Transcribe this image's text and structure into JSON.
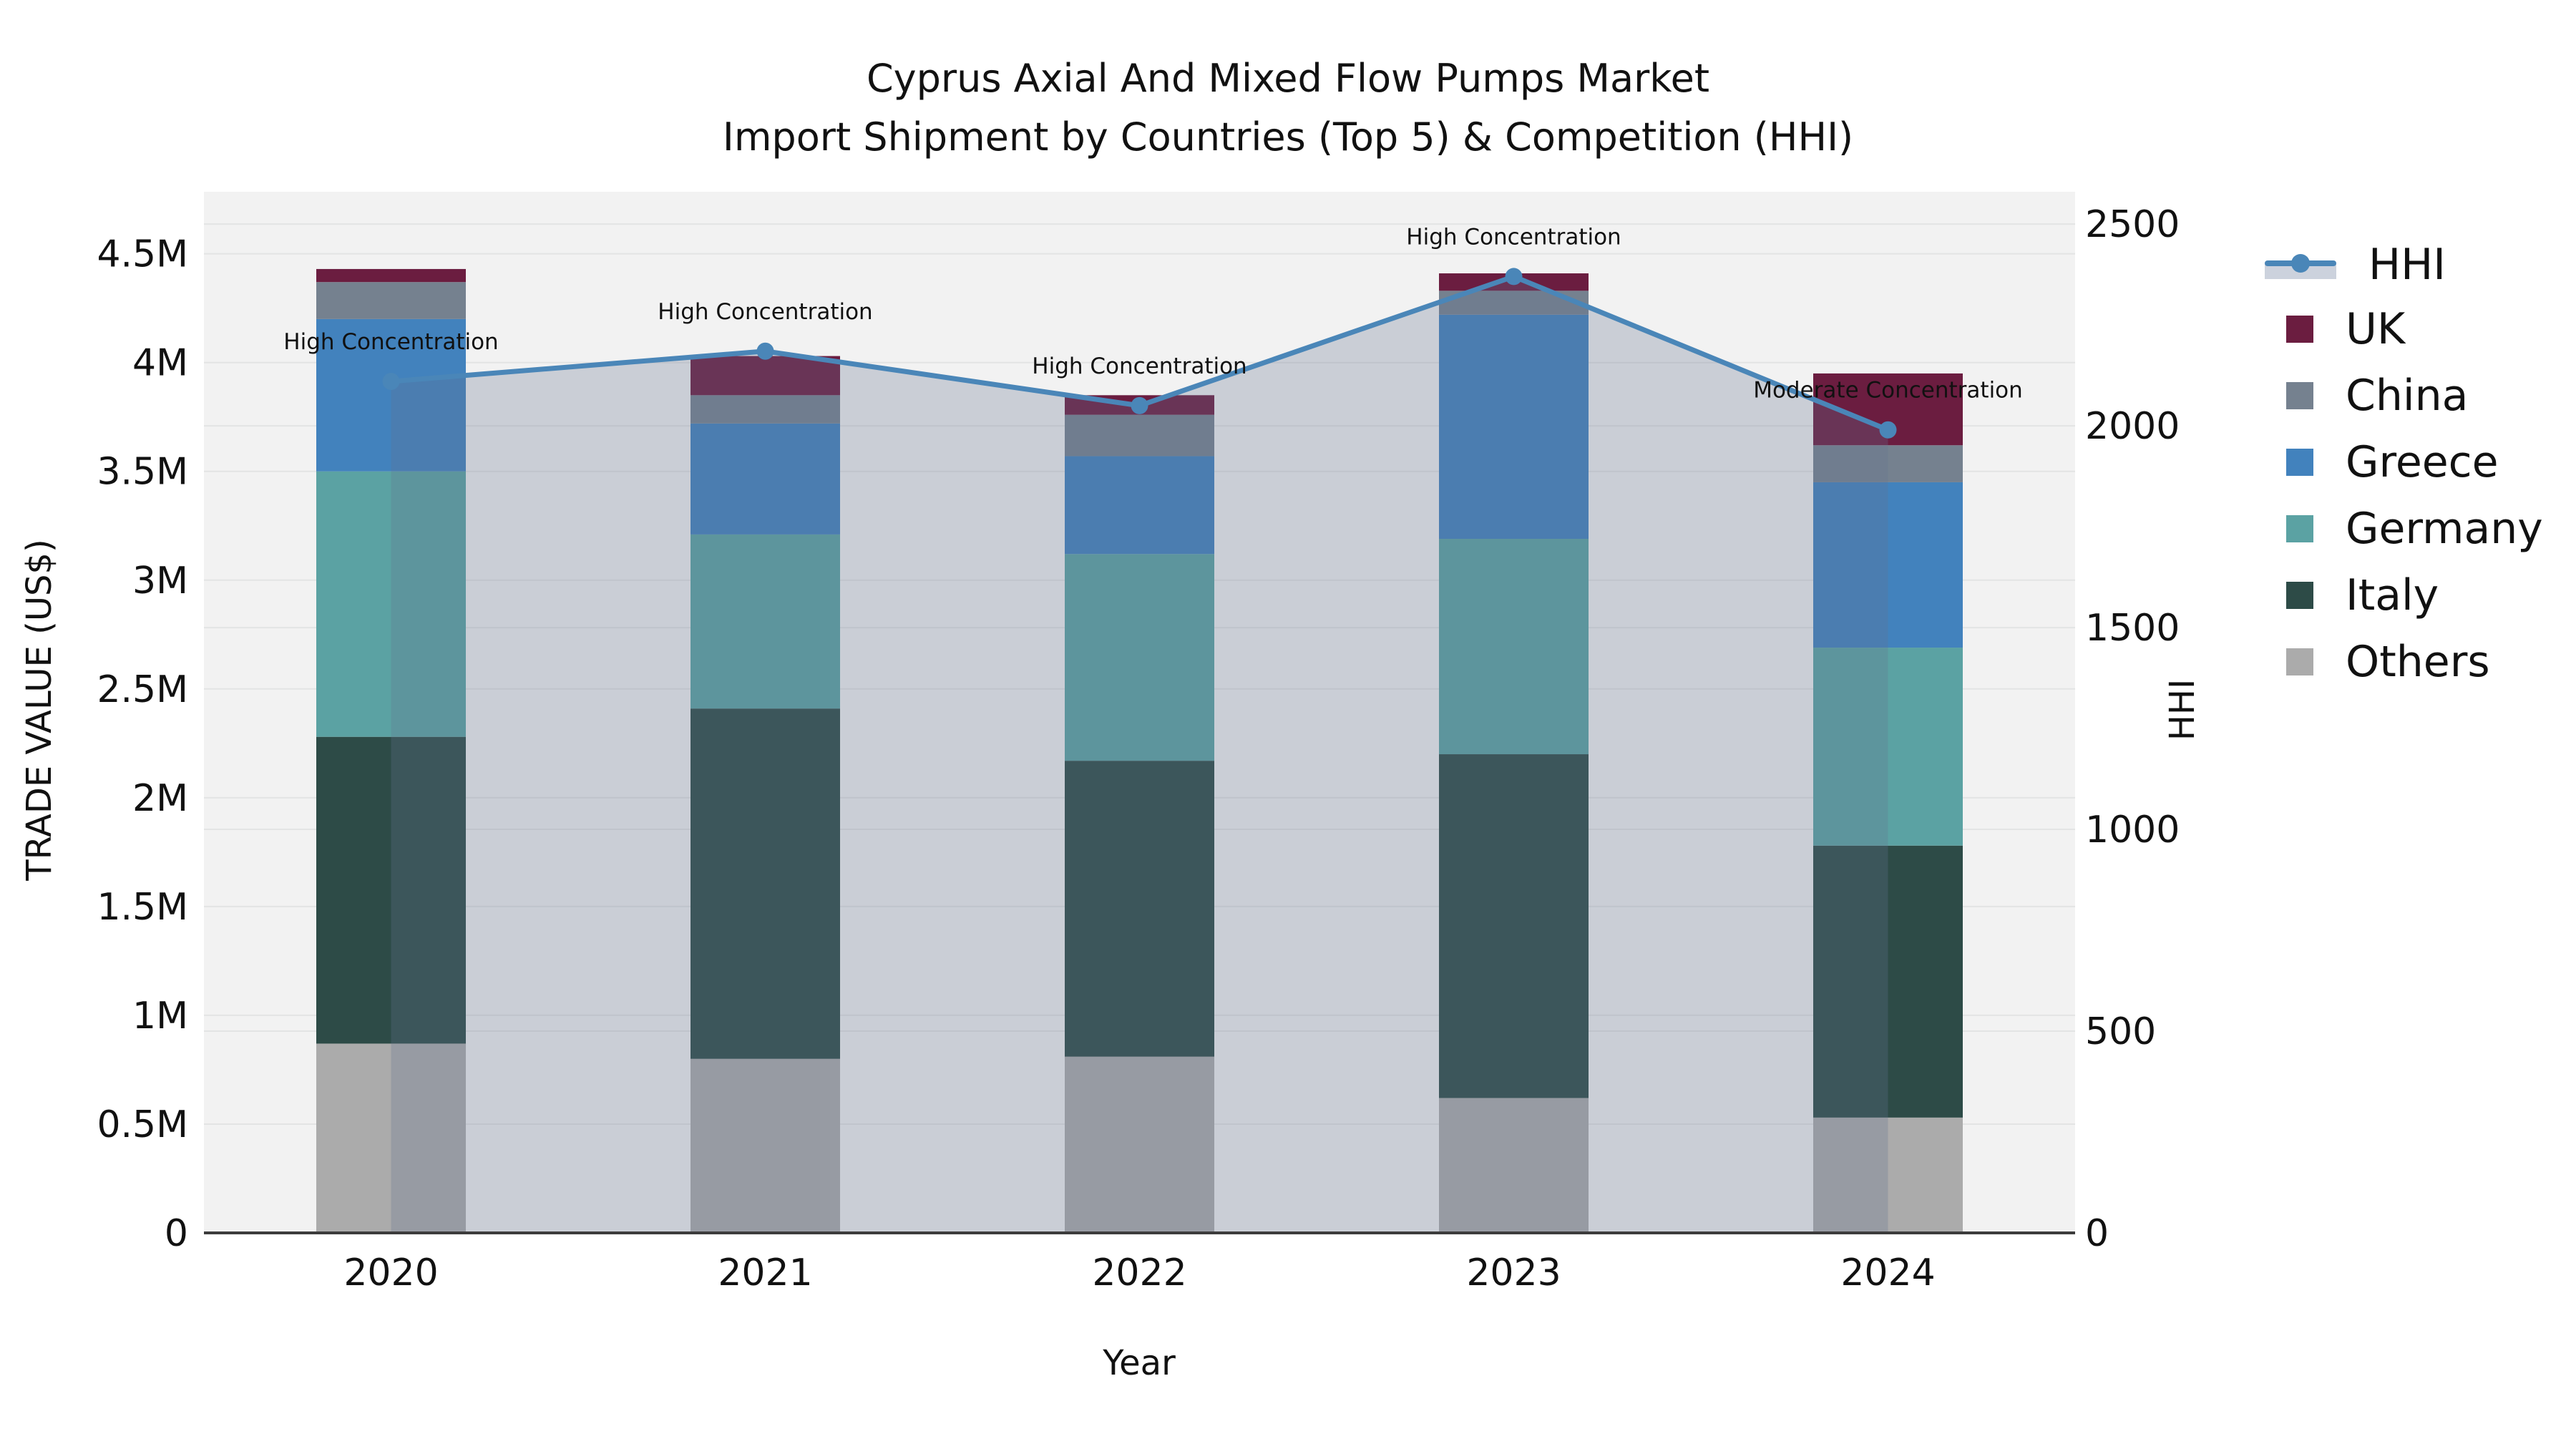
{
  "title": {
    "line1": "Cyprus Axial And Mixed Flow Pumps Market",
    "line2": "Import Shipment by Countries (Top 5) & Competition (HHI)"
  },
  "axes": {
    "left": {
      "title": "TRADE VALUE (US$)",
      "tick_labels": [
        "0",
        "0.5M",
        "1M",
        "1.5M",
        "2M",
        "2.5M",
        "3M",
        "3.5M",
        "4M",
        "4.5M"
      ],
      "tick_values": [
        0,
        0.5,
        1,
        1.5,
        2,
        2.5,
        3,
        3.5,
        4,
        4.5
      ],
      "max": 4.785
    },
    "right": {
      "title": "HHI",
      "tick_labels": [
        "0",
        "500",
        "1000",
        "1500",
        "2000",
        "2500"
      ],
      "tick_values": [
        0,
        500,
        1000,
        1500,
        2000,
        2500
      ],
      "max": 2580
    },
    "x": {
      "title": "Year"
    }
  },
  "legend_order": [
    "HHI",
    "UK",
    "China",
    "Greece",
    "Germany",
    "Italy",
    "Others"
  ],
  "chart_data": {
    "type": "bar+line",
    "categories": [
      "2020",
      "2021",
      "2022",
      "2023",
      "2024"
    ],
    "series": [
      {
        "name": "UK",
        "color": "#6b1d40",
        "values": [
          0.06,
          0.18,
          0.09,
          0.08,
          0.33
        ]
      },
      {
        "name": "China",
        "color": "#75818f",
        "values": [
          0.17,
          0.13,
          0.19,
          0.11,
          0.17
        ]
      },
      {
        "name": "Greece",
        "color": "#4282bd",
        "values": [
          0.7,
          0.51,
          0.45,
          1.03,
          0.76
        ]
      },
      {
        "name": "Germany",
        "color": "#5ba2a3",
        "values": [
          1.22,
          0.8,
          0.95,
          0.99,
          0.91
        ]
      },
      {
        "name": "Italy",
        "color": "#2d4b47",
        "values": [
          1.41,
          1.61,
          1.36,
          1.58,
          1.25
        ]
      },
      {
        "name": "Others",
        "color": "#ababab",
        "values": [
          0.87,
          0.8,
          0.81,
          0.62,
          0.53
        ]
      }
    ],
    "stack_order_bottom_up": [
      "Others",
      "Italy",
      "Germany",
      "Greece",
      "China",
      "UK"
    ],
    "hhi": {
      "name": "HHI",
      "color": "#4a86b8",
      "fill_color": "rgba(100,114,142,0.28)",
      "values": [
        2110,
        2185,
        2050,
        2370,
        1990
      ]
    },
    "annotations": [
      {
        "year": "2020",
        "text": "High Concentration"
      },
      {
        "year": "2021",
        "text": "High Concentration"
      },
      {
        "year": "2022",
        "text": "High Concentration"
      },
      {
        "year": "2023",
        "text": "High Concentration"
      },
      {
        "year": "2024",
        "text": "Moderate Concentration"
      }
    ],
    "ylabel": "TRADE VALUE (US$)",
    "y2label": "HHI",
    "xlabel": "Year",
    "ylim": [
      0,
      4.785
    ],
    "y2lim": [
      0,
      2580
    ],
    "grid": true,
    "legend_position": "right",
    "plot_bg": "#f2f2f2",
    "grid_color": "#e3e4e4",
    "axisline_color": "#3c3c3c"
  }
}
